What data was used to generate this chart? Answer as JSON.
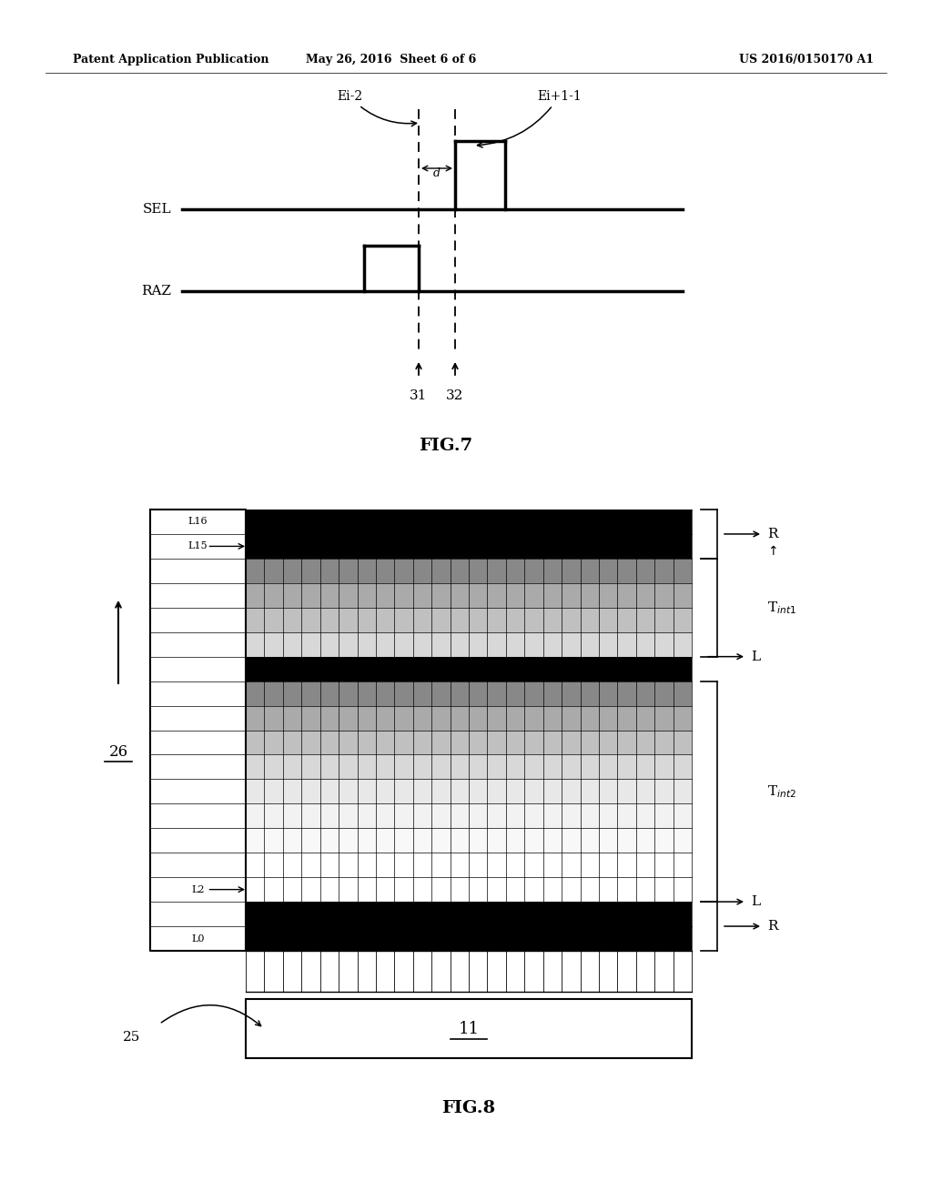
{
  "header_left": "Patent Application Publication",
  "header_mid": "May 26, 2016  Sheet 6 of 6",
  "header_right": "US 2016/0150170 A1",
  "fig7_label": "FIG.7",
  "fig8_label": "FIG.8",
  "bg_color": "#ffffff",
  "text_color": "#000000",
  "sel_label": "SEL",
  "raz_label": "RAZ",
  "ei_minus2_label": "Ei-2",
  "ei_plus1_label": "Ei+1-1",
  "d_label": "d",
  "label_31": "31",
  "label_32": "32",
  "label_26": "26",
  "label_25": "25",
  "label_11": "11",
  "row_colors": [
    "#000000",
    "#000000",
    "#000000",
    "#ffffff",
    "#ffffff",
    "#e8e8e8",
    "#d0d0d0",
    "#b8b8b8",
    "#a0a0a0",
    "#888888",
    "#686868",
    "#000000",
    "#686868",
    "#909090",
    "#b0b0b0",
    "#000000",
    "#000000",
    "#000000"
  ]
}
